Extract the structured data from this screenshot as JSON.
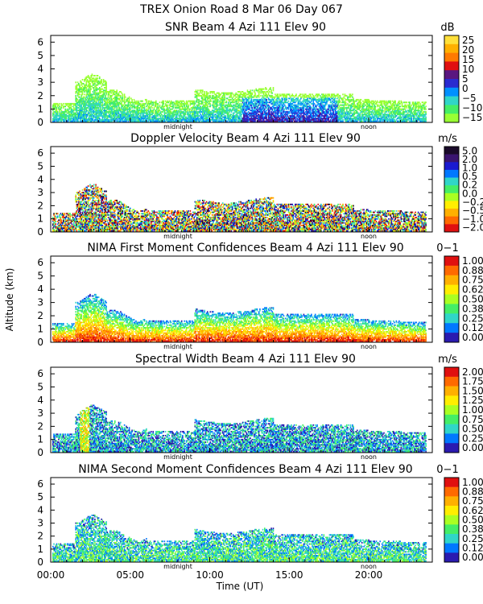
{
  "figure": {
    "title": "TREX Onion Road    8 Mar 06 Day 067",
    "ylabel": "Altitude (km)",
    "xlabel": "Time (UT)",
    "midnight_label": "midnight",
    "noon_label": "noon"
  },
  "chart_data": [
    {
      "type": "heatmap",
      "title": "SNR Beam 4 Azi 111 Elev 90",
      "unit": "dB",
      "x_ticks": [
        "00:00",
        "05:00",
        "10:00",
        "15:00",
        "20:00"
      ],
      "xlim": [
        0,
        24
      ],
      "ylim": [
        0,
        6.5
      ],
      "y_ticks": [
        "0",
        "1",
        "2",
        "3",
        "4",
        "5",
        "6"
      ],
      "colorbar": {
        "labels": [
          "25",
          "20",
          "15",
          "10",
          "5",
          "0",
          "−5",
          "−10",
          "−15"
        ],
        "colors": [
          "#ffe03a",
          "#ffb000",
          "#ff7a00",
          "#e01010",
          "#5a1680",
          "#2a2ad0",
          "#0090ff",
          "#30d6c8",
          "#44ee66",
          "#99ff33"
        ]
      }
    },
    {
      "type": "heatmap",
      "title": "Doppler Velocity Beam 4 Azi 111 Elev 90",
      "unit": "m/s",
      "x_ticks": [
        "00:00",
        "05:00",
        "10:00",
        "15:00",
        "20:00"
      ],
      "xlim": [
        0,
        24
      ],
      "ylim": [
        0,
        6.5
      ],
      "y_ticks": [
        "0",
        "1",
        "2",
        "3",
        "4",
        "5",
        "6"
      ],
      "colorbar": {
        "labels": [
          "5.0",
          "2.0",
          "1.0",
          "0.5",
          "0.2",
          "0.0",
          "−0.2",
          "−0.5",
          "−1.0",
          "−2.0"
        ],
        "colors": [
          "#1a0a2a",
          "#3a1470",
          "#1a1ad0",
          "#0078ff",
          "#30d6c8",
          "#44ee66",
          "#aaff22",
          "#ffee00",
          "#ffb000",
          "#ff6a00",
          "#e01010"
        ]
      }
    },
    {
      "type": "heatmap",
      "title": "NIMA First Moment Confidences Beam 4 Azi 111 Elev 90",
      "unit": "0−1",
      "x_ticks": [
        "00:00",
        "05:00",
        "10:00",
        "15:00",
        "20:00"
      ],
      "xlim": [
        0,
        24
      ],
      "ylim": [
        0,
        6.5
      ],
      "y_ticks": [
        "0",
        "1",
        "2",
        "3",
        "4",
        "5",
        "6"
      ],
      "colorbar": {
        "labels": [
          "1.00",
          "0.88",
          "0.75",
          "0.62",
          "0.50",
          "0.38",
          "0.25",
          "0.12",
          "0.00"
        ],
        "colors": [
          "#e01010",
          "#ff6a00",
          "#ffb000",
          "#ffee00",
          "#aaff22",
          "#44ee66",
          "#30d6c8",
          "#0078ff",
          "#2a1ab0"
        ]
      }
    },
    {
      "type": "heatmap",
      "title": "Spectral Width Beam 4 Azi 111 Elev 90",
      "unit": "m/s",
      "x_ticks": [
        "00:00",
        "05:00",
        "10:00",
        "15:00",
        "20:00"
      ],
      "xlim": [
        0,
        24
      ],
      "ylim": [
        0,
        6.5
      ],
      "y_ticks": [
        "0",
        "1",
        "2",
        "3",
        "4",
        "5",
        "6"
      ],
      "colorbar": {
        "labels": [
          "2.00",
          "1.75",
          "1.50",
          "1.25",
          "1.00",
          "0.75",
          "0.50",
          "0.25",
          "0.00"
        ],
        "colors": [
          "#e01010",
          "#ff6a00",
          "#ffb000",
          "#ffee00",
          "#aaff22",
          "#44ee66",
          "#30d6c8",
          "#0078ff",
          "#2a1ab0"
        ]
      }
    },
    {
      "type": "heatmap",
      "title": "NIMA Second Moment Confidences Beam 4 Azi 111 Elev 90",
      "unit": "0−1",
      "x_ticks": [
        "00:00",
        "05:00",
        "10:00",
        "15:00",
        "20:00"
      ],
      "xlim": [
        0,
        24
      ],
      "ylim": [
        0,
        6.5
      ],
      "y_ticks": [
        "0",
        "1",
        "2",
        "3",
        "4",
        "5",
        "6"
      ],
      "colorbar": {
        "labels": [
          "1.00",
          "0.88",
          "0.75",
          "0.62",
          "0.50",
          "0.38",
          "0.25",
          "0.12",
          "0.00"
        ],
        "colors": [
          "#e01010",
          "#ff6a00",
          "#ffb000",
          "#ffee00",
          "#aaff22",
          "#44ee66",
          "#30d6c8",
          "#0078ff",
          "#2a1ab0"
        ]
      }
    }
  ]
}
